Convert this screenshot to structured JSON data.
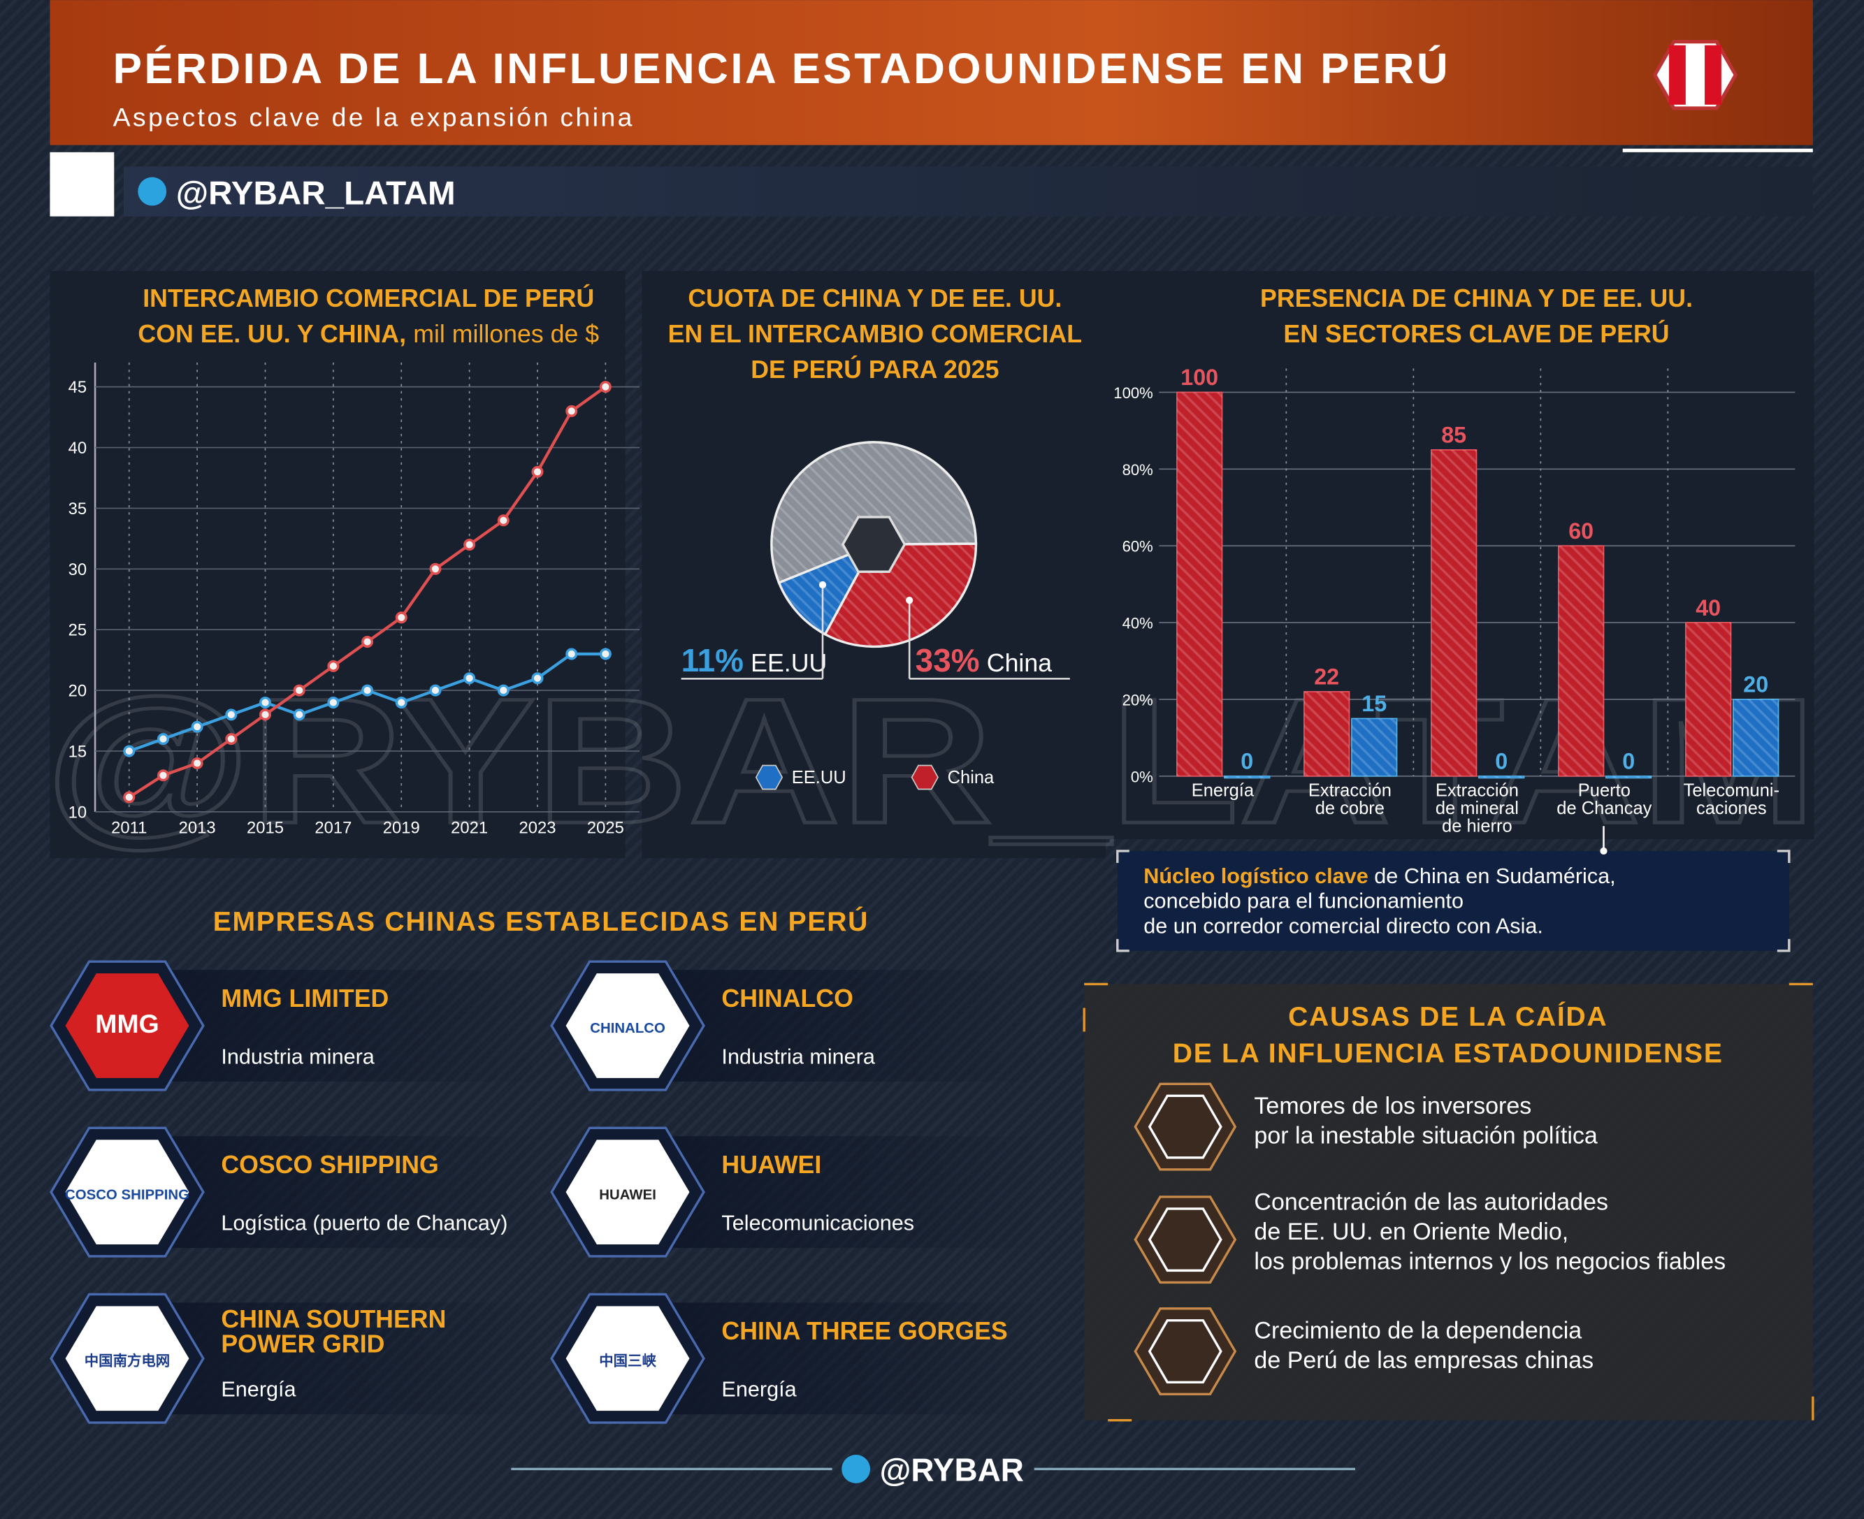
{
  "header": {
    "title": "PÉRDIDA DE LA INFLUENCIA ESTADOUNIDENSE EN PERÚ",
    "subtitle": "Aspectos clave de la expansión china",
    "handle": "@RYBAR_LATAM"
  },
  "chart_data": [
    {
      "type": "line",
      "title": "INTERCAMBIO COMERCIAL DE PERÚ\nCON EE. UU. Y CHINA,",
      "unit": "mil millones de $",
      "x": [
        2011,
        2012,
        2013,
        2014,
        2015,
        2016,
        2017,
        2018,
        2019,
        2020,
        2021,
        2022,
        2023,
        2024,
        2025
      ],
      "series": [
        {
          "color": "#3aa0e0",
          "values": [
            15,
            16,
            17,
            18,
            19,
            18,
            19,
            20,
            19,
            20,
            21,
            20,
            21,
            23,
            23
          ]
        },
        {
          "color": "#e05050",
          "values": [
            11.2,
            13,
            14,
            16,
            18,
            20,
            22,
            24,
            26,
            30,
            32,
            34,
            38,
            43,
            45
          ]
        }
      ],
      "xlim": [
        2010,
        2026
      ],
      "xticks": [
        2011,
        2013,
        2015,
        2017,
        2019,
        2021,
        2023,
        2025
      ],
      "ylim": [
        10,
        47
      ],
      "yticks": [
        10,
        15,
        20,
        25,
        30,
        35,
        40,
        45
      ],
      "grid": true
    },
    {
      "type": "pie",
      "title": "CUOTA DE CHINA Y DE EE. UU.\nEN EL INTERCAMBIO COMERCIAL\nDE PERÚ PARA 2025",
      "categories": [
        "EE.UU",
        "China",
        null
      ],
      "values": [
        11,
        33,
        56
      ],
      "value_labels": [
        "11%",
        "33%",
        null
      ],
      "colors": [
        "#1f6fc4",
        "#c0202a",
        "#8a8f98"
      ]
    },
    {
      "type": "bar",
      "title": "PRESENCIA DE CHINA Y DE EE. UU.\nEN SECTORES CLAVE DE PERÚ",
      "categories": [
        "Energía",
        "Extracción\nde cobre",
        "Extracción\nde mineral\nde hierro",
        "Puerto\nde Chancay",
        "Telecomuni-\ncaciones"
      ],
      "series": [
        {
          "color": "#c0202a",
          "label_color": "#e8555f",
          "values": [
            100,
            22,
            85,
            60,
            40
          ]
        },
        {
          "color": "#1f6fc4",
          "label_color": "#4fb0e8",
          "values": [
            0,
            15,
            0,
            0,
            20
          ]
        }
      ],
      "ylim": [
        0,
        100
      ],
      "yticks": [
        {
          "value": 0,
          "label": "0%"
        },
        {
          "value": 20,
          "label": "20%"
        },
        {
          "value": 40,
          "label": "40%"
        },
        {
          "value": 60,
          "label": "60%"
        },
        {
          "value": 80,
          "label": "80%"
        },
        {
          "value": 100,
          "label": "100%"
        }
      ],
      "grid": true,
      "annotation": {
        "highlight": "Núcleo logístico clave",
        "text": "de China en Sudamérica,\nconcebido para el funcionamiento\nde un corredor comercial directo con Asia."
      }
    }
  ],
  "companies": {
    "title": "EMPRESAS CHINAS ESTABLECIDAS EN PERÚ",
    "items": [
      {
        "logo": "MMG",
        "name": "MMG LIMITED",
        "sector": "Industria minera"
      },
      {
        "logo": "CHINALCO",
        "name": "CHINALCO",
        "sector": "Industria minera"
      },
      {
        "logo": "COSCO SHIPPING",
        "name": "COSCO SHIPPING",
        "sector": "Logística (puerto de Chancay)"
      },
      {
        "logo": "HUAWEI",
        "name": "HUAWEI",
        "sector": "Telecomunicaciones"
      },
      {
        "logo": "中国南方电网",
        "name": "CHINA SOUTHERN\nPOWER GRID",
        "sector": "Energía"
      },
      {
        "logo": "中国三峡",
        "name": "CHINA THREE GORGES",
        "sector": "Energía"
      }
    ]
  },
  "causes": {
    "title": "CAUSAS DE LA CAÍDA\nDE LA INFLUENCIA ESTADOUNIDENSE",
    "items": [
      "Temores de los inversores\npor la inestable situación política",
      "Concentración de las autoridades\nde EE. UU. en Oriente Medio,\nlos problemas internos y los negocios fiables",
      "Crecimiento de la dependencia\nde Perú de las empresas chinas"
    ]
  },
  "footer": {
    "handle": "@RYBAR"
  }
}
